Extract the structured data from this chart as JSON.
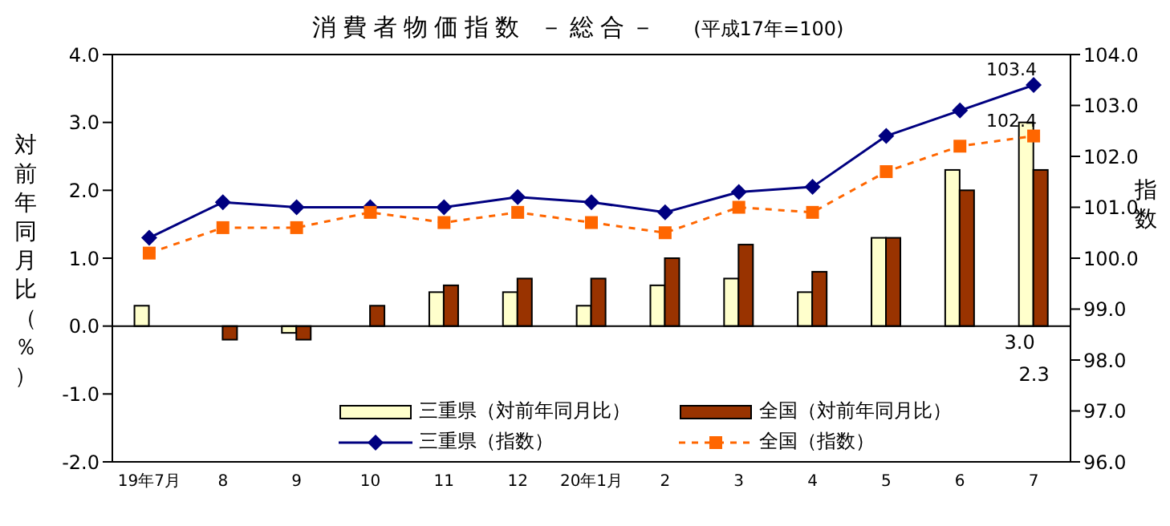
{
  "chart_data": {
    "type": "bar",
    "title": "消費者物価指数 －総合－",
    "subtitle": "(平成17年=100)",
    "ylabel": "対前年同月比（％）",
    "y2label": "指数",
    "categories": [
      "19年7月",
      "8",
      "9",
      "10",
      "11",
      "12",
      "20年1月",
      "2",
      "3",
      "4",
      "5",
      "6",
      "7"
    ],
    "series": [
      {
        "name": "三重県（対前年同月比）",
        "color": "#ffffcc",
        "values": [
          0.3,
          0.0,
          -0.1,
          0.0,
          0.5,
          0.5,
          0.3,
          0.6,
          0.7,
          0.5,
          1.3,
          2.3,
          3.0
        ],
        "value_labels": [
          null,
          null,
          null,
          null,
          null,
          null,
          null,
          null,
          null,
          null,
          null,
          null,
          "3.0"
        ]
      },
      {
        "name": "全国（対前年同月比）",
        "color": "#993300",
        "values": [
          0.0,
          -0.2,
          -0.2,
          0.3,
          0.6,
          0.7,
          0.7,
          1.0,
          1.2,
          0.8,
          1.3,
          2.0,
          2.3
        ],
        "value_labels": [
          null,
          null,
          null,
          null,
          null,
          null,
          null,
          null,
          null,
          null,
          null,
          null,
          "2.3"
        ]
      },
      {
        "name": "三重県（指数）",
        "type": "line",
        "axis": "y2",
        "color": "#000080",
        "marker": "diamond",
        "line_style": "solid",
        "values": [
          100.4,
          101.1,
          101.0,
          101.0,
          101.0,
          101.2,
          101.1,
          100.9,
          101.3,
          101.4,
          102.4,
          102.9,
          103.4
        ],
        "value_labels": [
          null,
          null,
          null,
          null,
          null,
          null,
          null,
          null,
          null,
          null,
          null,
          null,
          "103.4"
        ]
      },
      {
        "name": "全国（指数）",
        "type": "line",
        "axis": "y2",
        "color": "#ff6600",
        "marker": "square",
        "line_style": "dashed",
        "values": [
          100.1,
          100.6,
          100.6,
          100.9,
          100.7,
          100.9,
          100.7,
          100.5,
          101.0,
          100.9,
          101.7,
          102.2,
          102.4
        ],
        "value_labels": [
          null,
          null,
          null,
          null,
          null,
          null,
          null,
          null,
          null,
          null,
          null,
          null,
          "102.4"
        ]
      }
    ],
    "ylim": [
      -2,
      4
    ],
    "yticks": [
      {
        "value": -2,
        "label": "-2.0"
      },
      {
        "value": -1,
        "label": "-1.0"
      },
      {
        "value": 0,
        "label": "0.0"
      },
      {
        "value": 1,
        "label": "1.0"
      },
      {
        "value": 2,
        "label": "2.0"
      },
      {
        "value": 3,
        "label": "3.0"
      },
      {
        "value": 4,
        "label": "4.0"
      }
    ],
    "y2lim": [
      96,
      104
    ],
    "y2ticks": [
      {
        "value": 96,
        "label": "96.0"
      },
      {
        "value": 97,
        "label": "97.0"
      },
      {
        "value": 98,
        "label": "98.0"
      },
      {
        "value": 99,
        "label": "99.0"
      },
      {
        "value": 100,
        "label": "100.0"
      },
      {
        "value": 101,
        "label": "101.0"
      },
      {
        "value": 102,
        "label": "102.0"
      },
      {
        "value": 103,
        "label": "103.0"
      },
      {
        "value": 104,
        "label": "104.0"
      }
    ],
    "ref_lines": [
      {
        "axis": "y",
        "value": 0,
        "color": "#000000"
      }
    ],
    "grid": false,
    "legend": "bottom"
  }
}
